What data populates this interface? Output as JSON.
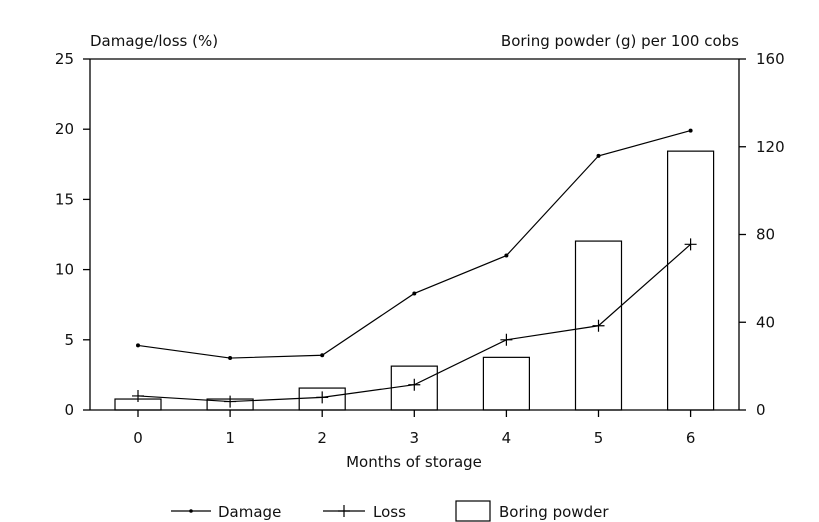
{
  "chart_data": {
    "type": "bar",
    "xlabel": "Months of storage",
    "ylabel": "Damage/loss (%)",
    "y2label": "Boring powder (g) per 100 cobs",
    "x": [
      0,
      1,
      2,
      3,
      4,
      5,
      6
    ],
    "x_tick_labels": [
      "0",
      "1",
      "2",
      "3",
      "4",
      "5",
      "6"
    ],
    "ylim": [
      0,
      25
    ],
    "y_ticks": [
      0,
      5,
      10,
      15,
      20,
      25
    ],
    "y_tick_labels": [
      "0",
      "5",
      "10",
      "15",
      "20",
      "25"
    ],
    "y2lim": [
      0,
      160
    ],
    "y2_ticks": [
      0,
      40,
      80,
      120,
      160
    ],
    "y2_tick_labels": [
      "0",
      "40",
      "80",
      "120",
      "160"
    ],
    "series": [
      {
        "name": "Damage",
        "kind": "line",
        "marker": "dot",
        "axis": "left",
        "values": [
          4.6,
          3.7,
          3.9,
          8.3,
          11.0,
          18.1,
          19.9
        ]
      },
      {
        "name": "Loss",
        "kind": "line",
        "marker": "plus",
        "axis": "left",
        "values": [
          1.0,
          0.6,
          0.9,
          1.8,
          5.0,
          6.0,
          11.8
        ]
      },
      {
        "name": "Boring powder",
        "kind": "bar",
        "axis": "right",
        "values": [
          5,
          5,
          10,
          20,
          24,
          77,
          118
        ]
      }
    ],
    "legend_position": "bottom",
    "grid": false
  }
}
